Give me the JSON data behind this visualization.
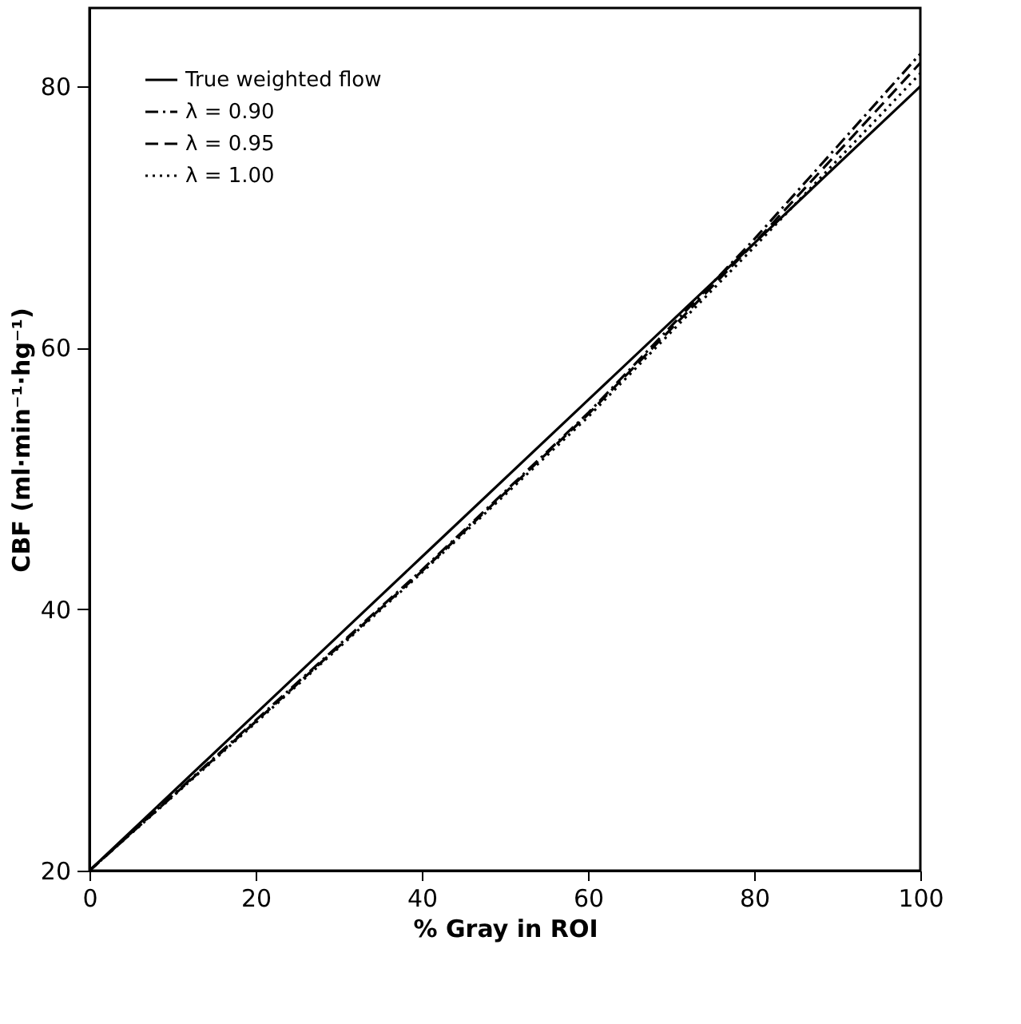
{
  "chart_data": {
    "type": "line",
    "xlabel": "% Gray in ROI",
    "ylabel": "CBF (ml·min⁻¹·hg⁻¹)",
    "x": [
      0,
      20,
      40,
      60,
      80,
      100
    ],
    "series": [
      {
        "name": "True weighted flow",
        "color": "#000000",
        "line_style": "solid",
        "values": [
          20,
          32,
          44,
          56,
          68,
          80
        ]
      },
      {
        "name": "λ = 0.90",
        "color": "#000000",
        "line_style": "dashdot",
        "values": [
          20,
          31.5,
          43,
          55,
          68.3,
          82.5
        ]
      },
      {
        "name": "λ = 0.95",
        "color": "#000000",
        "line_style": "dashed",
        "values": [
          20,
          31.4,
          42.9,
          54.9,
          68,
          81.8
        ]
      },
      {
        "name": "λ = 1.00",
        "color": "#000000",
        "line_style": "dotted",
        "values": [
          20,
          31.3,
          42.8,
          54.7,
          67.7,
          81
        ]
      }
    ],
    "xlim": [
      0,
      100
    ],
    "xticks": [
      0,
      20,
      40,
      60,
      80,
      100
    ],
    "ylim": [
      20,
      86
    ],
    "yticks": [
      20,
      40,
      60,
      80
    ],
    "grid": false,
    "legend": "top left",
    "marker": "none"
  }
}
